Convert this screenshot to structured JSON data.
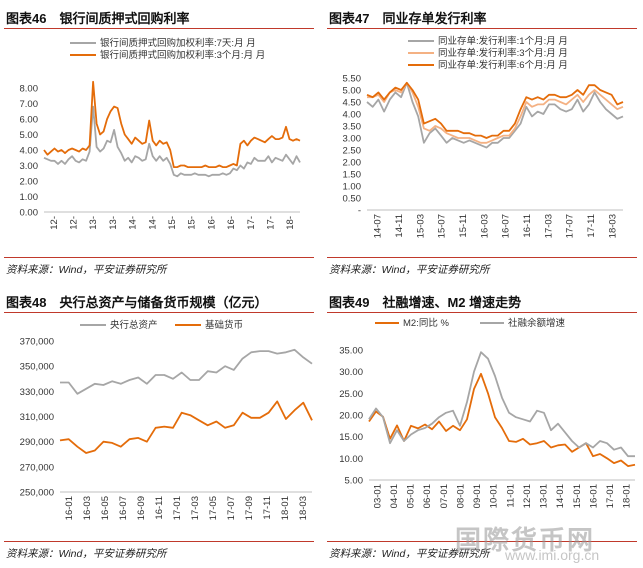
{
  "colors": {
    "gray": "#a6a6a6",
    "orange": "#e46c0a",
    "light_orange": "#f4b183",
    "rule": "#c0392b"
  },
  "watermark": {
    "name": "国際货币网",
    "url": "www.imi.org.cn"
  },
  "chart_data": [
    {
      "type": "line",
      "title": "图表46　银行间质押式回购利率",
      "source": "资料来源：Wind，平安证券研究所",
      "x_tick_labels": [
        "12-",
        "12-",
        "13-",
        "13-",
        "14-",
        "14-",
        "15-",
        "15-",
        "16-",
        "16-",
        "17-",
        "17-",
        "18-"
      ],
      "y_tick_labels": [
        "0.00",
        "1.00",
        "2.00",
        "3.00",
        "4.00",
        "5.00",
        "6.00",
        "7.00",
        "8.00"
      ],
      "ylim": [
        0,
        8
      ],
      "legend_position": "top",
      "series": [
        {
          "name": "银行间质押式回购加权利率:7天:月 月",
          "color": "#a6a6a6",
          "values": [
            3.5,
            3.4,
            3.3,
            3.3,
            3.1,
            3.3,
            3.1,
            3.4,
            3.6,
            3.3,
            3.2,
            3.4,
            3.3,
            3.9,
            6.8,
            4.2,
            3.9,
            4.1,
            4.6,
            4.5,
            5.3,
            4.2,
            3.8,
            3.3,
            3.5,
            3.2,
            3.6,
            3.5,
            3.3,
            3.4,
            4.4,
            3.6,
            3.3,
            3.6,
            3.3,
            3.5,
            3.1,
            2.4,
            2.3,
            2.5,
            2.4,
            2.4,
            2.4,
            2.5,
            2.4,
            2.4,
            2.4,
            2.3,
            2.4,
            2.4,
            2.4,
            2.5,
            2.4,
            2.5,
            2.8,
            2.7,
            3.0,
            2.8,
            3.2,
            3.1,
            3.5,
            3.3,
            3.3,
            3.3,
            3.6,
            3.2,
            3.5,
            3.4,
            3.3,
            3.7,
            3.4,
            3.1,
            3.6,
            3.2
          ]
        },
        {
          "name": "银行间质押式回购加权利率:3个月:月 月",
          "color": "#e46c0a",
          "values": [
            4.0,
            3.7,
            3.9,
            4.1,
            3.9,
            4.0,
            3.8,
            4.0,
            4.1,
            4.0,
            3.9,
            4.1,
            4.0,
            4.3,
            8.4,
            5.7,
            5.0,
            5.2,
            6.0,
            6.5,
            6.8,
            6.7,
            5.7,
            5.0,
            4.7,
            4.4,
            4.8,
            4.6,
            4.4,
            4.5,
            5.9,
            4.6,
            4.3,
            4.6,
            4.4,
            4.5,
            4.0,
            2.9,
            2.9,
            3.0,
            3.0,
            2.9,
            2.9,
            2.9,
            2.9,
            2.9,
            3.0,
            2.9,
            2.9,
            2.9,
            3.0,
            2.9,
            2.9,
            3.0,
            3.1,
            3.0,
            4.4,
            4.6,
            4.3,
            4.6,
            4.8,
            4.7,
            4.6,
            4.5,
            4.7,
            4.9,
            4.7,
            4.7,
            4.8,
            5.5,
            4.7,
            4.6,
            4.7,
            4.6
          ]
        }
      ]
    },
    {
      "type": "line",
      "title": "图表47　同业存单发行利率",
      "source": "资料来源：Wind，平安证券研究所",
      "x_tick_labels": [
        "14-07",
        "14-11",
        "15-03",
        "15-07",
        "15-11",
        "16-03",
        "16-07",
        "16-11",
        "17-03",
        "17-07",
        "17-11",
        "18-03"
      ],
      "y_tick_labels": [
        "-",
        "0.50",
        "1.00",
        "1.50",
        "2.00",
        "2.50",
        "3.00",
        "3.50",
        "4.00",
        "4.50",
        "5.00",
        "5.50"
      ],
      "ylim": [
        0,
        5.5
      ],
      "legend_position": "top",
      "series": [
        {
          "name": "同业存单:发行利率:1个月:月 月",
          "color": "#a6a6a6",
          "values": [
            4.5,
            4.3,
            4.6,
            4.1,
            4.6,
            4.9,
            4.7,
            5.3,
            4.5,
            3.9,
            2.8,
            3.2,
            3.4,
            3.1,
            2.8,
            3.0,
            2.9,
            2.8,
            2.9,
            2.8,
            2.7,
            2.6,
            2.8,
            2.8,
            3.0,
            3.0,
            3.3,
            3.6,
            4.3,
            3.9,
            4.1,
            4.0,
            4.4,
            4.4,
            4.2,
            4.1,
            4.2,
            4.6,
            4.1,
            4.4,
            4.9,
            4.5,
            4.2,
            4.0,
            3.8,
            3.9
          ]
        },
        {
          "name": "同业存单:发行利率:3个月:月 月",
          "color": "#f4b183",
          "values": [
            4.7,
            4.7,
            4.8,
            4.5,
            4.9,
            5.0,
            4.9,
            5.3,
            4.9,
            4.3,
            3.4,
            3.3,
            3.5,
            3.4,
            3.2,
            3.1,
            3.0,
            3.0,
            3.0,
            2.9,
            2.8,
            2.8,
            2.9,
            3.0,
            3.1,
            3.1,
            3.4,
            3.9,
            4.5,
            4.3,
            4.4,
            4.4,
            4.6,
            4.6,
            4.5,
            4.4,
            4.6,
            4.8,
            4.5,
            4.8,
            5.0,
            4.8,
            4.6,
            4.4,
            4.2,
            4.3
          ]
        },
        {
          "name": "同业存单:发行利率:6个月:月 月",
          "color": "#e46c0a",
          "values": [
            4.8,
            4.7,
            4.9,
            4.6,
            4.9,
            5.1,
            5.0,
            5.3,
            5.0,
            4.6,
            3.6,
            3.7,
            3.8,
            3.6,
            3.3,
            3.3,
            3.3,
            3.2,
            3.2,
            3.1,
            3.1,
            3.0,
            3.1,
            3.1,
            3.3,
            3.3,
            3.6,
            4.2,
            4.7,
            4.6,
            4.7,
            4.6,
            4.8,
            4.8,
            4.7,
            4.7,
            4.8,
            5.0,
            4.8,
            5.2,
            5.2,
            5.0,
            4.9,
            4.8,
            4.4,
            4.5
          ]
        }
      ]
    },
    {
      "type": "line",
      "title": "图表48　央行总资产与储备货币规模（亿元）",
      "source": "资料来源：Wind，平安证券研究所",
      "x_tick_labels": [
        "16-01",
        "16-03",
        "16-05",
        "16-07",
        "16-09",
        "16-11",
        "17-01",
        "17-03",
        "17-05",
        "17-07",
        "17-09",
        "17-11",
        "18-01",
        "18-03"
      ],
      "y_tick_labels": [
        "250,000",
        "270,000",
        "290,000",
        "310,000",
        "330,000",
        "350,000",
        "370,000"
      ],
      "ylim": [
        250000,
        370000
      ],
      "legend_position": "top",
      "series": [
        {
          "name": "央行总资产",
          "color": "#a6a6a6",
          "values": [
            337000,
            337000,
            328000,
            332000,
            336000,
            335000,
            338000,
            336000,
            339000,
            341000,
            336000,
            343000,
            343000,
            340000,
            345000,
            339000,
            339000,
            346000,
            345000,
            350000,
            347000,
            356000,
            361000,
            362000,
            362000,
            360000,
            361000,
            363000,
            357000,
            352000
          ]
        },
        {
          "name": "基础货币",
          "color": "#e46c0a",
          "values": [
            291000,
            292000,
            286000,
            281000,
            283000,
            290000,
            289000,
            286000,
            292000,
            293000,
            290000,
            301000,
            302000,
            301000,
            313000,
            311000,
            307000,
            303000,
            306000,
            301000,
            303000,
            313000,
            309000,
            309000,
            313000,
            322000,
            308000,
            315000,
            321000,
            307000
          ]
        }
      ]
    },
    {
      "type": "line",
      "title": "图表49　社融增速、M2 增速走势",
      "source": "资料来源：Wind，平安证券研究所",
      "x_tick_labels": [
        "03-01",
        "04-01",
        "05-01",
        "06-01",
        "07-01",
        "08-01",
        "09-01",
        "10-01",
        "11-01",
        "12-01",
        "13-01",
        "14-01",
        "15-01",
        "16-01",
        "17-01",
        "18-01"
      ],
      "y_tick_labels": [
        "5.00",
        "10.00",
        "15.00",
        "20.00",
        "25.00",
        "30.00",
        "35.00"
      ],
      "ylim": [
        5,
        35
      ],
      "legend_position": "top",
      "series": [
        {
          "name": "M2:同比 %",
          "color": "#e46c0a",
          "values": [
            18.5,
            20.8,
            19.6,
            14.5,
            17.6,
            14.0,
            17.5,
            16.9,
            17.8,
            16.7,
            18.5,
            16.3,
            17.5,
            16.5,
            19.0,
            26.0,
            29.5,
            25.0,
            19.5,
            17.0,
            14.0,
            13.8,
            14.5,
            13.2,
            13.5,
            14.0,
            12.5,
            13.0,
            13.2,
            11.5,
            12.5,
            13.5,
            10.5,
            11.0,
            10.0,
            8.9,
            9.5,
            8.2,
            8.5
          ]
        },
        {
          "name": "社融余额增速",
          "color": "#a6a6a6",
          "values": [
            19.0,
            21.5,
            19.5,
            13.5,
            16.5,
            14.0,
            15.5,
            16.5,
            17.0,
            18.0,
            19.5,
            20.5,
            21.0,
            17.5,
            23.0,
            30.0,
            34.5,
            33.0,
            29.0,
            24.0,
            20.5,
            19.5,
            19.0,
            18.5,
            21.0,
            20.5,
            16.5,
            18.0,
            16.0,
            14.0,
            12.5,
            13.5,
            12.5,
            14.0,
            13.5,
            12.0,
            12.5,
            10.5,
            10.5
          ]
        }
      ]
    }
  ]
}
